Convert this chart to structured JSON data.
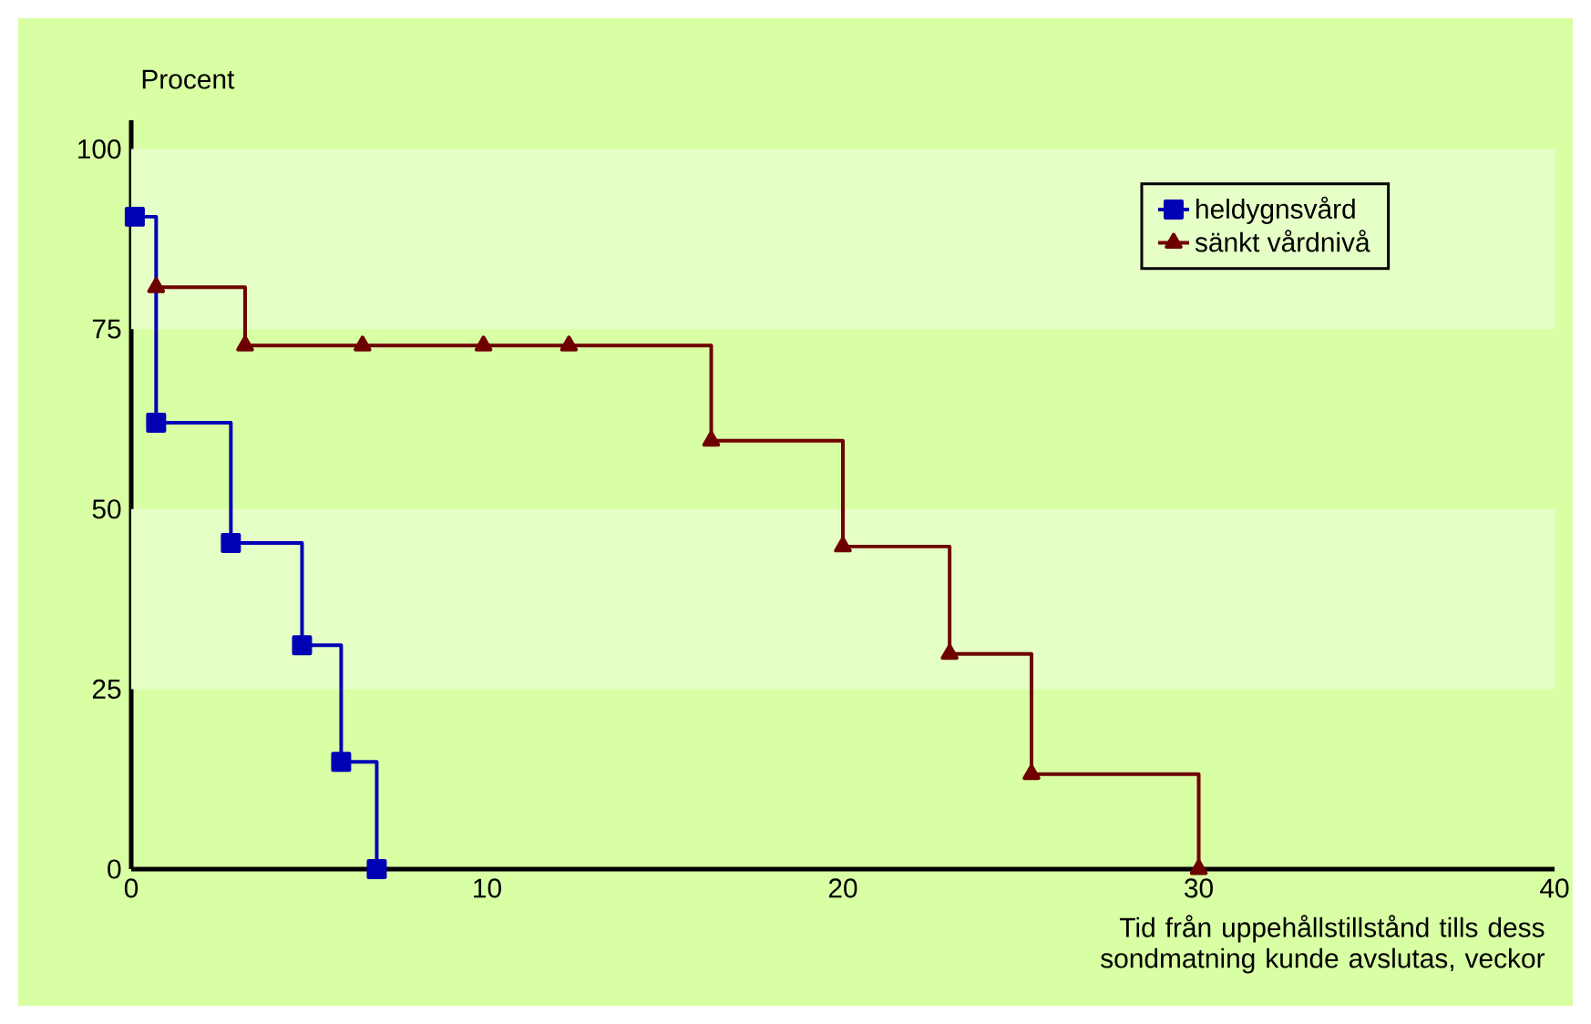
{
  "chart_data": {
    "type": "step",
    "ylabel": "Procent",
    "xlabel": "Tid från uppehållstillstånd tills dess sondmatning kunde avslutas, veckor",
    "xlim": [
      0,
      40
    ],
    "xticks": [
      0,
      10,
      20,
      30,
      40
    ],
    "ylim": [
      0,
      104
    ],
    "yticks": [
      0,
      25,
      50,
      75,
      100
    ],
    "legend": "top right",
    "grid": false,
    "bands": [
      {
        "axis": "y",
        "from": 75,
        "to": 100,
        "color": "#e6ffc6"
      },
      {
        "axis": "y",
        "from": 25,
        "to": 50,
        "color": "#e6ffc6"
      }
    ],
    "series": [
      {
        "name": "heldygnsvård",
        "color": "#0000b4",
        "marker": "square",
        "x": [
          0.1,
          0.7,
          2.8,
          4.8,
          5.9,
          6.9
        ],
        "values": [
          90.6,
          62,
          45.3,
          31.1,
          14.9,
          0
        ]
      },
      {
        "name": "sänkt vårdnivå",
        "color": "#6e0000",
        "marker": "triangle",
        "x": [
          0.7,
          3.2,
          6.5,
          9.9,
          12.3,
          16.3,
          20.0,
          23.0,
          25.3,
          30.0
        ],
        "values": [
          80.8,
          72.7,
          72.7,
          72.7,
          72.7,
          59.5,
          44.8,
          29.9,
          13.2,
          0
        ]
      }
    ]
  }
}
